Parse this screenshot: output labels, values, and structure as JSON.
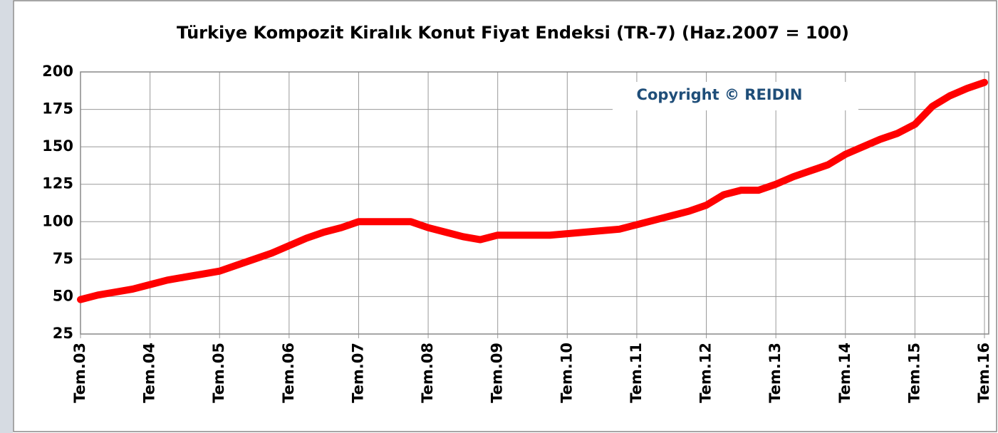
{
  "chart_data": {
    "type": "line",
    "title": "Türkiye Kompozit Kiralık Konut Fiyat Endeksi (TR-7) (Haz.2007 = 100)",
    "annotation": "Copyright © REIDIN",
    "categories": [
      "Tem.03",
      null,
      null,
      null,
      "Tem.04",
      null,
      null,
      null,
      "Tem.05",
      null,
      null,
      null,
      "Tem.06",
      null,
      null,
      null,
      "Tem.07",
      null,
      null,
      null,
      "Tem.08",
      null,
      null,
      null,
      "Tem.09",
      null,
      null,
      null,
      "Tem.10",
      null,
      null,
      null,
      "Tem.11",
      null,
      null,
      null,
      "Tem.12",
      null,
      null,
      null,
      "Tem.13",
      null,
      null,
      null,
      "Tem.14",
      null,
      null,
      null,
      "Tem.15",
      null,
      null,
      null,
      "Tem.16"
    ],
    "series": [
      {
        "color": "#ff0000",
        "values": [
          48,
          51,
          53,
          55,
          58,
          61,
          63,
          65,
          67,
          71,
          75,
          79,
          84,
          89,
          93,
          96,
          100,
          100,
          100,
          100,
          96,
          93,
          90,
          88,
          91,
          91,
          91,
          91,
          92,
          93,
          94,
          95,
          98,
          101,
          104,
          107,
          111,
          118,
          121,
          121,
          125,
          130,
          134,
          138,
          145,
          150,
          155,
          159,
          165,
          177,
          184,
          189,
          193
        ]
      }
    ],
    "ylim": [
      25,
      200
    ],
    "yticks": [
      25,
      50,
      75,
      100,
      125,
      150,
      175,
      200
    ],
    "grid": true
  }
}
